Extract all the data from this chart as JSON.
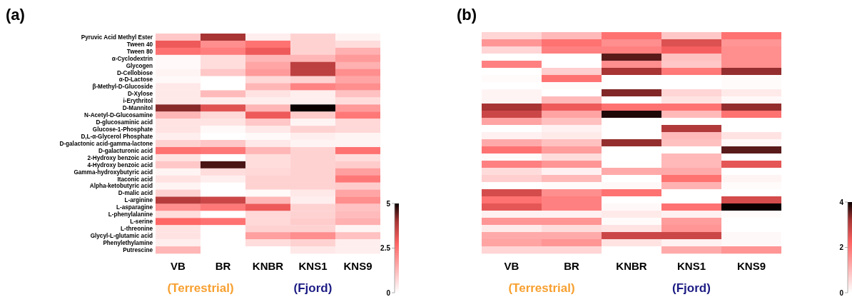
{
  "chart_data": [
    {
      "type": "heatmap",
      "title": "(a)",
      "categories": [
        "VB",
        "BR",
        "KNBR",
        "KNS1",
        "KNS9"
      ],
      "y_categories": [
        "Pyruvic Acid Methyl Ester",
        "Tween 40",
        "Tween 80",
        "α-Cyclodextrin",
        "Glycogen",
        "D-Cellobiose",
        "α-D-Lactose",
        "β-Methyl-D-Glucoside",
        "D-Xylose",
        "i-Erythritol",
        "D-Mannitol",
        "N-Acetyl-D-Glucosamine",
        "D-glucosaminic acid",
        "Glucose-1-Phosphate",
        "D,L-α-Glycerol Phosphate",
        "D-galactonic acid-gamma-lactone",
        "D-galacturonic acid",
        "2-Hydroxy benzoic acid",
        "4-Hydroxy benzoic acid",
        "Gamma-hydroxybutyric acid",
        "Itaconic acid",
        "Alpha-ketobutyric acid",
        "D-malic acid",
        "L-arginine",
        "L-asparagine",
        "L-phenylalanine",
        "L-serine",
        "L-threonine",
        "Glycyl-L-glutamic acid",
        "Phenylethylamine",
        "Putrescine"
      ],
      "cells": [
        [
          1.0,
          4.0,
          0.3,
          0.8,
          0.2
        ],
        [
          3.0,
          2.0,
          2.5,
          0.8,
          0.6
        ],
        [
          2.5,
          2.3,
          3.0,
          0.8,
          1.4
        ],
        [
          0.1,
          0.6,
          1.3,
          1.3,
          1.8
        ],
        [
          0.1,
          0.6,
          1.6,
          3.7,
          1.4
        ],
        [
          0.2,
          1.0,
          1.8,
          3.7,
          2.0
        ],
        [
          0.1,
          0,
          0.7,
          0.8,
          1.6
        ],
        [
          0.4,
          0,
          1.3,
          2.2,
          2.0
        ],
        [
          0.4,
          1.2,
          0.5,
          0.3,
          1.1
        ],
        [
          0.4,
          0.3,
          0.3,
          0.3,
          0.6
        ],
        [
          4.2,
          3.2,
          1.3,
          5.0,
          1.8
        ],
        [
          1.3,
          0.7,
          3.0,
          0.9,
          2.4
        ],
        [
          0.5,
          0.5,
          1.0,
          0.2,
          0.7
        ],
        [
          0.5,
          0.1,
          0.4,
          0.8,
          0.7
        ],
        [
          0.3,
          0,
          0.1,
          0.3,
          0.2
        ],
        [
          0.8,
          1.0,
          0.4,
          0.2,
          0.2
        ],
        [
          2.5,
          2.4,
          1.3,
          0.8,
          2.5
        ],
        [
          0.5,
          0,
          0.6,
          0.8,
          0.6
        ],
        [
          1.0,
          4.6,
          0.6,
          0.8,
          0.9
        ],
        [
          0.2,
          0.6,
          0.7,
          0.8,
          1.7
        ],
        [
          0.5,
          0.3,
          0.8,
          0.8,
          2.4
        ],
        [
          0.2,
          0,
          0.8,
          0.8,
          0.9
        ],
        [
          0.8,
          0,
          0.1,
          0.4,
          1.6
        ],
        [
          3.8,
          3.5,
          1.3,
          0.3,
          2.0
        ],
        [
          2.0,
          2.4,
          3.0,
          0.8,
          1.1
        ],
        [
          0.6,
          0,
          0.7,
          0.8,
          1.2
        ],
        [
          2.7,
          2.5,
          0.7,
          0.9,
          1.4
        ],
        [
          0.5,
          0,
          0.8,
          0.8,
          0.2
        ],
        [
          0.5,
          0,
          1.7,
          2.0,
          1.1
        ],
        [
          0.3,
          0,
          0.6,
          0.8,
          0.3
        ],
        [
          1.3,
          0,
          0,
          0.4,
          0.3
        ]
      ],
      "clim": [
        0,
        5
      ],
      "cticks": [
        0,
        2.5,
        5
      ],
      "annotations": [
        "(Terrestrial)",
        "(Fjord)"
      ]
    },
    {
      "type": "heatmap",
      "title": "(b)",
      "categories": [
        "VB",
        "BR",
        "KNBR",
        "KNS1",
        "KNS9"
      ],
      "y_categories": [
        null,
        null,
        null,
        null,
        null,
        null,
        null,
        null,
        null,
        null,
        null,
        null,
        null,
        null,
        null,
        null,
        null,
        null,
        null,
        null,
        null,
        null,
        null,
        null,
        null,
        null,
        null,
        null,
        null,
        null,
        null
      ],
      "cells": [
        [
          0.6,
          1.0,
          2.0,
          0.8,
          2.0
        ],
        [
          1.5,
          2.0,
          1.6,
          2.6,
          1.5
        ],
        [
          0.6,
          1.8,
          1.8,
          2.3,
          1.6
        ],
        [
          0,
          0,
          3.6,
          0.9,
          1.6
        ],
        [
          1.8,
          0,
          1.6,
          0.8,
          1.6
        ],
        [
          0,
          0.7,
          3.2,
          1.9,
          3.3
        ],
        [
          0.05,
          2.0,
          0,
          0,
          0.05
        ],
        [
          0,
          0.05,
          0,
          0,
          0.05
        ],
        [
          0.15,
          0,
          3.4,
          0.6,
          0.3
        ],
        [
          0.15,
          1.0,
          0,
          0.4,
          0.1
        ],
        [
          3.2,
          2.4,
          2.0,
          2.0,
          3.3
        ],
        [
          2.8,
          1.3,
          3.9,
          1.0,
          2.0
        ],
        [
          1.3,
          0.9,
          0,
          0,
          0
        ],
        [
          0,
          0.2,
          0,
          3.1,
          0
        ],
        [
          0.2,
          0.3,
          0,
          1.0,
          0.4
        ],
        [
          1.2,
          0.9,
          3.3,
          0.9,
          0.1
        ],
        [
          2.0,
          1.4,
          0,
          0,
          3.6
        ],
        [
          0.05,
          0.5,
          0,
          1.0,
          0
        ],
        [
          1.8,
          1.5,
          0,
          1.0,
          2.5
        ],
        [
          0.5,
          0.2,
          1.2,
          1.2,
          0
        ],
        [
          0.7,
          1.0,
          0,
          2.0,
          0.15
        ],
        [
          0,
          0.05,
          0.1,
          1.1,
          0.05
        ],
        [
          2.7,
          1.6,
          2.0,
          0,
          0
        ],
        [
          2.0,
          1.8,
          0,
          0,
          2.7
        ],
        [
          2.5,
          1.8,
          0.1,
          2.0,
          4.0
        ],
        [
          0.2,
          0.2,
          0.3,
          0.2,
          0.05
        ],
        [
          1.5,
          1.5,
          0.05,
          1.4,
          0
        ],
        [
          0.3,
          0.5,
          0.4,
          1.5,
          0
        ],
        [
          1.2,
          1.2,
          2.8,
          2.8,
          0.1
        ],
        [
          1.3,
          1.5,
          0.4,
          0.2,
          0.1
        ],
        [
          0.6,
          0.6,
          0,
          1.2,
          1.5
        ]
      ],
      "clim": [
        0,
        4
      ],
      "cticks": [
        0,
        2,
        4
      ],
      "annotations": [
        "(Terrestrial)",
        "(Fjord)"
      ]
    }
  ]
}
